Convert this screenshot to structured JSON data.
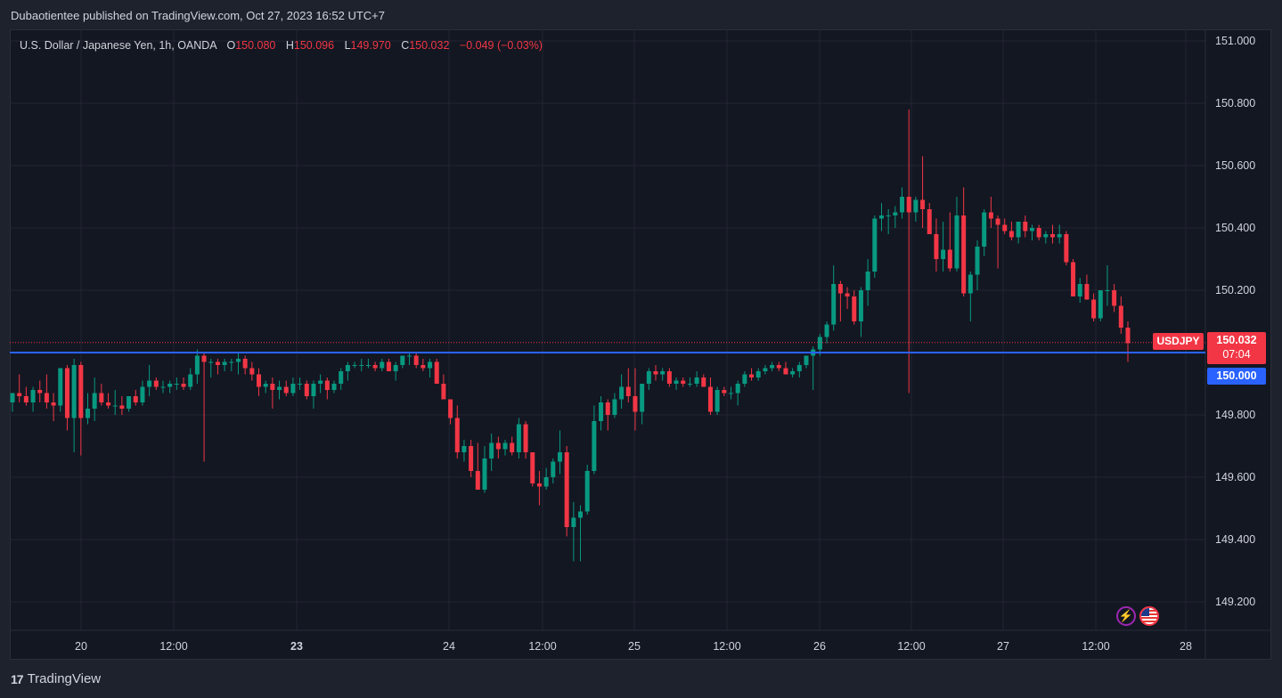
{
  "publish_line": "Dubaotientee published on TradingView.com, Oct 27, 2023 16:52 UTC+7",
  "legend": {
    "symbol": "U.S. Dollar / Japanese Yen, 1h, OANDA",
    "o_label": "O",
    "o_value": "150.080",
    "h_label": "H",
    "h_value": "150.096",
    "l_label": "L",
    "l_value": "149.970",
    "c_label": "C",
    "c_value": "150.032",
    "change": "−0.049 (−0.03%)"
  },
  "badges": {
    "symbol": "USDJPY",
    "last_price": "150.032",
    "countdown": "07:04",
    "level": "150.000"
  },
  "footer": {
    "logo": "17",
    "brand": "TradingView"
  },
  "icons": [
    "lightning-icon",
    "us-flag-icon"
  ],
  "colors": {
    "up": "#089981",
    "down": "#f23645",
    "level_line": "#2962ff",
    "grid": "#232632"
  },
  "chart_data": {
    "type": "candlestick",
    "symbol": "USDJPY",
    "interval": "1h",
    "y_ticks": [
      "151.000",
      "150.800",
      "150.600",
      "150.400",
      "150.200",
      "150.000",
      "149.800",
      "149.600",
      "149.400",
      "149.200"
    ],
    "y_range": [
      149.09,
      151.06
    ],
    "x_ticks": [
      "20",
      "12:00",
      "23",
      "24",
      "12:00",
      "25",
      "12:00",
      "26",
      "12:00",
      "27",
      "12:00",
      "28"
    ],
    "horizontal_line": 150.0,
    "last_price": 150.032,
    "ohlc": [
      {
        "o": 149.84,
        "h": 149.87,
        "l": 149.81,
        "c": 149.87
      },
      {
        "o": 149.87,
        "h": 149.93,
        "l": 149.84,
        "c": 149.86
      },
      {
        "o": 149.86,
        "h": 149.89,
        "l": 149.83,
        "c": 149.84
      },
      {
        "o": 149.84,
        "h": 149.89,
        "l": 149.81,
        "c": 149.88
      },
      {
        "o": 149.88,
        "h": 149.91,
        "l": 149.84,
        "c": 149.87
      },
      {
        "o": 149.87,
        "h": 149.93,
        "l": 149.82,
        "c": 149.84
      },
      {
        "o": 149.84,
        "h": 149.87,
        "l": 149.78,
        "c": 149.83
      },
      {
        "o": 149.83,
        "h": 149.94,
        "l": 149.81,
        "c": 149.95
      },
      {
        "o": 149.95,
        "h": 149.96,
        "l": 149.75,
        "c": 149.79
      },
      {
        "o": 149.79,
        "h": 149.98,
        "l": 149.68,
        "c": 149.96
      },
      {
        "o": 149.96,
        "h": 149.97,
        "l": 149.67,
        "c": 149.79
      },
      {
        "o": 149.79,
        "h": 149.87,
        "l": 149.77,
        "c": 149.82
      },
      {
        "o": 149.82,
        "h": 149.92,
        "l": 149.78,
        "c": 149.87
      },
      {
        "o": 149.87,
        "h": 149.9,
        "l": 149.83,
        "c": 149.84
      },
      {
        "o": 149.84,
        "h": 149.87,
        "l": 149.82,
        "c": 149.83
      },
      {
        "o": 149.83,
        "h": 149.88,
        "l": 149.8,
        "c": 149.83
      },
      {
        "o": 149.83,
        "h": 149.86,
        "l": 149.8,
        "c": 149.82
      },
      {
        "o": 149.82,
        "h": 149.86,
        "l": 149.81,
        "c": 149.86
      },
      {
        "o": 149.86,
        "h": 149.88,
        "l": 149.83,
        "c": 149.84
      },
      {
        "o": 149.84,
        "h": 149.91,
        "l": 149.83,
        "c": 149.89
      },
      {
        "o": 149.89,
        "h": 149.96,
        "l": 149.86,
        "c": 149.91
      },
      {
        "o": 149.91,
        "h": 149.92,
        "l": 149.88,
        "c": 149.89
      },
      {
        "o": 149.89,
        "h": 149.91,
        "l": 149.87,
        "c": 149.89
      },
      {
        "o": 149.89,
        "h": 149.91,
        "l": 149.87,
        "c": 149.9
      },
      {
        "o": 149.9,
        "h": 149.92,
        "l": 149.88,
        "c": 149.9
      },
      {
        "o": 149.9,
        "h": 149.92,
        "l": 149.88,
        "c": 149.89
      },
      {
        "o": 149.89,
        "h": 149.95,
        "l": 149.88,
        "c": 149.93
      },
      {
        "o": 149.93,
        "h": 150.01,
        "l": 149.9,
        "c": 149.99
      },
      {
        "o": 149.99,
        "h": 150.0,
        "l": 149.65,
        "c": 149.97
      },
      {
        "o": 149.97,
        "h": 149.98,
        "l": 149.92,
        "c": 149.97
      },
      {
        "o": 149.97,
        "h": 149.98,
        "l": 149.93,
        "c": 149.96
      },
      {
        "o": 149.96,
        "h": 149.98,
        "l": 149.94,
        "c": 149.97
      },
      {
        "o": 149.97,
        "h": 149.98,
        "l": 149.94,
        "c": 149.97
      },
      {
        "o": 149.97,
        "h": 150.0,
        "l": 149.93,
        "c": 149.98
      },
      {
        "o": 149.98,
        "h": 149.99,
        "l": 149.93,
        "c": 149.95
      },
      {
        "o": 149.95,
        "h": 149.97,
        "l": 149.91,
        "c": 149.93
      },
      {
        "o": 149.93,
        "h": 149.95,
        "l": 149.86,
        "c": 149.89
      },
      {
        "o": 149.89,
        "h": 149.91,
        "l": 149.87,
        "c": 149.9
      },
      {
        "o": 149.9,
        "h": 149.92,
        "l": 149.82,
        "c": 149.88
      },
      {
        "o": 149.88,
        "h": 149.91,
        "l": 149.85,
        "c": 149.89
      },
      {
        "o": 149.89,
        "h": 149.91,
        "l": 149.86,
        "c": 149.87
      },
      {
        "o": 149.87,
        "h": 149.92,
        "l": 149.86,
        "c": 149.9
      },
      {
        "o": 149.9,
        "h": 149.92,
        "l": 149.88,
        "c": 149.9
      },
      {
        "o": 149.9,
        "h": 149.91,
        "l": 149.85,
        "c": 149.86
      },
      {
        "o": 149.86,
        "h": 149.91,
        "l": 149.82,
        "c": 149.9
      },
      {
        "o": 149.9,
        "h": 149.93,
        "l": 149.87,
        "c": 149.91
      },
      {
        "o": 149.91,
        "h": 149.92,
        "l": 149.85,
        "c": 149.88
      },
      {
        "o": 149.88,
        "h": 149.91,
        "l": 149.87,
        "c": 149.9
      },
      {
        "o": 149.9,
        "h": 149.95,
        "l": 149.88,
        "c": 149.94
      },
      {
        "o": 149.94,
        "h": 149.97,
        "l": 149.91,
        "c": 149.96
      },
      {
        "o": 149.96,
        "h": 149.97,
        "l": 149.95,
        "c": 149.96
      },
      {
        "o": 149.96,
        "h": 149.98,
        "l": 149.94,
        "c": 149.96
      },
      {
        "o": 149.96,
        "h": 149.98,
        "l": 149.95,
        "c": 149.96
      },
      {
        "o": 149.96,
        "h": 149.97,
        "l": 149.94,
        "c": 149.95
      },
      {
        "o": 149.95,
        "h": 149.98,
        "l": 149.94,
        "c": 149.97
      },
      {
        "o": 149.97,
        "h": 149.98,
        "l": 149.94,
        "c": 149.94
      },
      {
        "o": 149.94,
        "h": 149.97,
        "l": 149.91,
        "c": 149.96
      },
      {
        "o": 149.96,
        "h": 149.99,
        "l": 149.95,
        "c": 149.99
      },
      {
        "o": 149.99,
        "h": 150.0,
        "l": 149.96,
        "c": 149.99
      },
      {
        "o": 149.99,
        "h": 150.0,
        "l": 149.95,
        "c": 149.96
      },
      {
        "o": 149.96,
        "h": 149.98,
        "l": 149.94,
        "c": 149.95
      },
      {
        "o": 149.95,
        "h": 149.98,
        "l": 149.92,
        "c": 149.97
      },
      {
        "o": 149.97,
        "h": 149.98,
        "l": 149.9,
        "c": 149.9
      },
      {
        "o": 149.9,
        "h": 149.93,
        "l": 149.85,
        "c": 149.85
      },
      {
        "o": 149.85,
        "h": 149.85,
        "l": 149.77,
        "c": 149.79
      },
      {
        "o": 149.79,
        "h": 149.83,
        "l": 149.66,
        "c": 149.68
      },
      {
        "o": 149.68,
        "h": 149.72,
        "l": 149.65,
        "c": 149.7
      },
      {
        "o": 149.7,
        "h": 149.72,
        "l": 149.6,
        "c": 149.62
      },
      {
        "o": 149.62,
        "h": 149.71,
        "l": 149.56,
        "c": 149.56
      },
      {
        "o": 149.56,
        "h": 149.7,
        "l": 149.55,
        "c": 149.66
      },
      {
        "o": 149.66,
        "h": 149.74,
        "l": 149.62,
        "c": 149.71
      },
      {
        "o": 149.71,
        "h": 149.73,
        "l": 149.66,
        "c": 149.69
      },
      {
        "o": 149.69,
        "h": 149.72,
        "l": 149.67,
        "c": 149.71
      },
      {
        "o": 149.71,
        "h": 149.73,
        "l": 149.67,
        "c": 149.68
      },
      {
        "o": 149.68,
        "h": 149.79,
        "l": 149.66,
        "c": 149.77
      },
      {
        "o": 149.77,
        "h": 149.78,
        "l": 149.66,
        "c": 149.68
      },
      {
        "o": 149.68,
        "h": 149.68,
        "l": 149.57,
        "c": 149.58
      },
      {
        "o": 149.58,
        "h": 149.62,
        "l": 149.51,
        "c": 149.57
      },
      {
        "o": 149.57,
        "h": 149.63,
        "l": 149.56,
        "c": 149.6
      },
      {
        "o": 149.6,
        "h": 149.66,
        "l": 149.58,
        "c": 149.65
      },
      {
        "o": 149.65,
        "h": 149.75,
        "l": 149.61,
        "c": 149.68
      },
      {
        "o": 149.68,
        "h": 149.7,
        "l": 149.41,
        "c": 149.44
      },
      {
        "o": 149.44,
        "h": 149.52,
        "l": 149.33,
        "c": 149.47
      },
      {
        "o": 149.47,
        "h": 149.51,
        "l": 149.33,
        "c": 149.49
      },
      {
        "o": 149.49,
        "h": 149.64,
        "l": 149.48,
        "c": 149.62
      },
      {
        "o": 149.62,
        "h": 149.83,
        "l": 149.61,
        "c": 149.78
      },
      {
        "o": 149.78,
        "h": 149.86,
        "l": 149.75,
        "c": 149.84
      },
      {
        "o": 149.84,
        "h": 149.85,
        "l": 149.75,
        "c": 149.8
      },
      {
        "o": 149.8,
        "h": 149.87,
        "l": 149.79,
        "c": 149.85
      },
      {
        "o": 149.85,
        "h": 149.93,
        "l": 149.82,
        "c": 149.89
      },
      {
        "o": 149.89,
        "h": 149.95,
        "l": 149.84,
        "c": 149.86
      },
      {
        "o": 149.86,
        "h": 149.95,
        "l": 149.75,
        "c": 149.81
      },
      {
        "o": 149.81,
        "h": 149.9,
        "l": 149.77,
        "c": 149.9
      },
      {
        "o": 149.9,
        "h": 149.95,
        "l": 149.88,
        "c": 149.94
      },
      {
        "o": 149.94,
        "h": 149.96,
        "l": 149.91,
        "c": 149.93
      },
      {
        "o": 149.93,
        "h": 149.95,
        "l": 149.91,
        "c": 149.94
      },
      {
        "o": 149.94,
        "h": 149.95,
        "l": 149.89,
        "c": 149.9
      },
      {
        "o": 149.9,
        "h": 149.92,
        "l": 149.88,
        "c": 149.91
      },
      {
        "o": 149.91,
        "h": 149.92,
        "l": 149.89,
        "c": 149.9
      },
      {
        "o": 149.9,
        "h": 149.92,
        "l": 149.89,
        "c": 149.9
      },
      {
        "o": 149.9,
        "h": 149.94,
        "l": 149.89,
        "c": 149.92
      },
      {
        "o": 149.92,
        "h": 149.93,
        "l": 149.89,
        "c": 149.89
      },
      {
        "o": 149.89,
        "h": 149.92,
        "l": 149.8,
        "c": 149.81
      },
      {
        "o": 149.81,
        "h": 149.89,
        "l": 149.8,
        "c": 149.88
      },
      {
        "o": 149.88,
        "h": 149.89,
        "l": 149.86,
        "c": 149.87
      },
      {
        "o": 149.87,
        "h": 149.89,
        "l": 149.85,
        "c": 149.87
      },
      {
        "o": 149.87,
        "h": 149.91,
        "l": 149.83,
        "c": 149.9
      },
      {
        "o": 149.9,
        "h": 149.94,
        "l": 149.89,
        "c": 149.93
      },
      {
        "o": 149.93,
        "h": 149.95,
        "l": 149.91,
        "c": 149.92
      },
      {
        "o": 149.92,
        "h": 149.95,
        "l": 149.91,
        "c": 149.94
      },
      {
        "o": 149.94,
        "h": 149.96,
        "l": 149.93,
        "c": 149.95
      },
      {
        "o": 149.95,
        "h": 149.97,
        "l": 149.94,
        "c": 149.96
      },
      {
        "o": 149.96,
        "h": 149.97,
        "l": 149.94,
        "c": 149.95
      },
      {
        "o": 149.95,
        "h": 149.97,
        "l": 149.93,
        "c": 149.93
      },
      {
        "o": 149.93,
        "h": 149.95,
        "l": 149.92,
        "c": 149.94
      },
      {
        "o": 149.94,
        "h": 149.97,
        "l": 149.92,
        "c": 149.96
      },
      {
        "o": 149.96,
        "h": 149.99,
        "l": 149.95,
        "c": 149.99
      },
      {
        "o": 149.99,
        "h": 150.02,
        "l": 149.88,
        "c": 150.01
      },
      {
        "o": 150.01,
        "h": 150.06,
        "l": 149.99,
        "c": 150.05
      },
      {
        "o": 150.05,
        "h": 150.1,
        "l": 150.03,
        "c": 150.09
      },
      {
        "o": 150.09,
        "h": 150.28,
        "l": 150.07,
        "c": 150.22
      },
      {
        "o": 150.22,
        "h": 150.23,
        "l": 150.1,
        "c": 150.19
      },
      {
        "o": 150.19,
        "h": 150.21,
        "l": 150.14,
        "c": 150.18
      },
      {
        "o": 150.18,
        "h": 150.2,
        "l": 150.09,
        "c": 150.1
      },
      {
        "o": 150.1,
        "h": 150.21,
        "l": 150.05,
        "c": 150.2
      },
      {
        "o": 150.2,
        "h": 150.3,
        "l": 150.15,
        "c": 150.26
      },
      {
        "o": 150.26,
        "h": 150.44,
        "l": 150.24,
        "c": 150.43
      },
      {
        "o": 150.43,
        "h": 150.48,
        "l": 150.39,
        "c": 150.44
      },
      {
        "o": 150.44,
        "h": 150.46,
        "l": 150.38,
        "c": 150.44
      },
      {
        "o": 150.44,
        "h": 150.47,
        "l": 150.4,
        "c": 150.45
      },
      {
        "o": 150.45,
        "h": 150.53,
        "l": 150.43,
        "c": 150.5
      },
      {
        "o": 150.5,
        "h": 150.78,
        "l": 149.87,
        "c": 150.45
      },
      {
        "o": 150.45,
        "h": 150.5,
        "l": 150.42,
        "c": 150.49
      },
      {
        "o": 150.49,
        "h": 150.63,
        "l": 150.4,
        "c": 150.46
      },
      {
        "o": 150.46,
        "h": 150.48,
        "l": 150.38,
        "c": 150.38
      },
      {
        "o": 150.38,
        "h": 150.43,
        "l": 150.26,
        "c": 150.3
      },
      {
        "o": 150.3,
        "h": 150.42,
        "l": 150.26,
        "c": 150.33
      },
      {
        "o": 150.33,
        "h": 150.45,
        "l": 150.26,
        "c": 150.27
      },
      {
        "o": 150.27,
        "h": 150.5,
        "l": 150.26,
        "c": 150.44
      },
      {
        "o": 150.44,
        "h": 150.53,
        "l": 150.18,
        "c": 150.19
      },
      {
        "o": 150.19,
        "h": 150.26,
        "l": 150.1,
        "c": 150.25
      },
      {
        "o": 150.25,
        "h": 150.36,
        "l": 150.2,
        "c": 150.34
      },
      {
        "o": 150.34,
        "h": 150.46,
        "l": 150.31,
        "c": 150.45
      },
      {
        "o": 150.45,
        "h": 150.5,
        "l": 150.4,
        "c": 150.43
      },
      {
        "o": 150.43,
        "h": 150.44,
        "l": 150.27,
        "c": 150.41
      },
      {
        "o": 150.41,
        "h": 150.43,
        "l": 150.38,
        "c": 150.39
      },
      {
        "o": 150.39,
        "h": 150.42,
        "l": 150.36,
        "c": 150.37
      },
      {
        "o": 150.37,
        "h": 150.42,
        "l": 150.35,
        "c": 150.42
      },
      {
        "o": 150.42,
        "h": 150.44,
        "l": 150.37,
        "c": 150.39
      },
      {
        "o": 150.39,
        "h": 150.41,
        "l": 150.36,
        "c": 150.4
      },
      {
        "o": 150.4,
        "h": 150.41,
        "l": 150.36,
        "c": 150.37
      },
      {
        "o": 150.37,
        "h": 150.39,
        "l": 150.35,
        "c": 150.38
      },
      {
        "o": 150.38,
        "h": 150.41,
        "l": 150.35,
        "c": 150.37
      },
      {
        "o": 150.37,
        "h": 150.41,
        "l": 150.35,
        "c": 150.38
      },
      {
        "o": 150.38,
        "h": 150.39,
        "l": 150.28,
        "c": 150.29
      },
      {
        "o": 150.29,
        "h": 150.3,
        "l": 150.18,
        "c": 150.18
      },
      {
        "o": 150.18,
        "h": 150.24,
        "l": 150.16,
        "c": 150.22
      },
      {
        "o": 150.22,
        "h": 150.25,
        "l": 150.17,
        "c": 150.17
      },
      {
        "o": 150.17,
        "h": 150.19,
        "l": 150.1,
        "c": 150.11
      },
      {
        "o": 150.11,
        "h": 150.2,
        "l": 150.1,
        "c": 150.2
      },
      {
        "o": 150.2,
        "h": 150.28,
        "l": 150.15,
        "c": 150.2
      },
      {
        "o": 150.2,
        "h": 150.22,
        "l": 150.13,
        "c": 150.15
      },
      {
        "o": 150.15,
        "h": 150.18,
        "l": 150.06,
        "c": 150.08
      },
      {
        "o": 150.08,
        "h": 150.1,
        "l": 149.97,
        "c": 150.03
      }
    ]
  }
}
